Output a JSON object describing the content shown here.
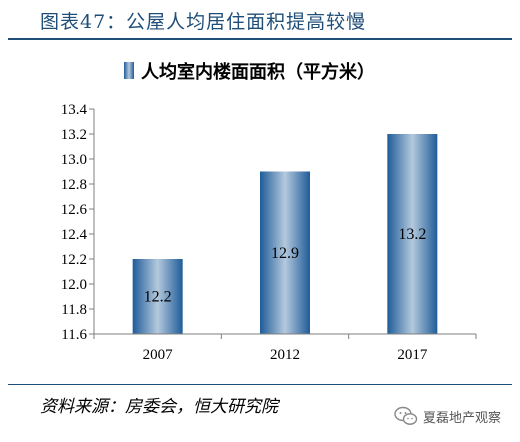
{
  "header": {
    "title": "图表47：公屋人均居住面积提高较慢"
  },
  "chart_data": {
    "type": "bar",
    "categories": [
      "2007",
      "2012",
      "2017"
    ],
    "series": [
      {
        "name": "人均室内楼面面积（平方米）",
        "values": [
          12.2,
          12.9,
          13.2
        ]
      }
    ],
    "data_labels": [
      "12.2",
      "12.9",
      "13.2"
    ],
    "ylim": [
      11.6,
      13.4
    ],
    "yticks": [
      11.6,
      11.8,
      12.0,
      12.2,
      12.4,
      12.6,
      12.8,
      13.0,
      13.2,
      13.4
    ],
    "ytick_labels": [
      "11.6",
      "11.8",
      "12.0",
      "12.2",
      "12.4",
      "12.6",
      "12.8",
      "13.0",
      "13.2",
      "13.4"
    ],
    "grid": false,
    "legend_position": "top",
    "colors": {
      "bar_edge": "#1f5c99",
      "bar_center": "#b4c9dd",
      "axis": "#7f7f7f"
    }
  },
  "footer": {
    "source": "资料来源：房委会，恒大研究院",
    "watermark": "夏磊地产观察",
    "watermark_icon": "wechat-icon"
  }
}
